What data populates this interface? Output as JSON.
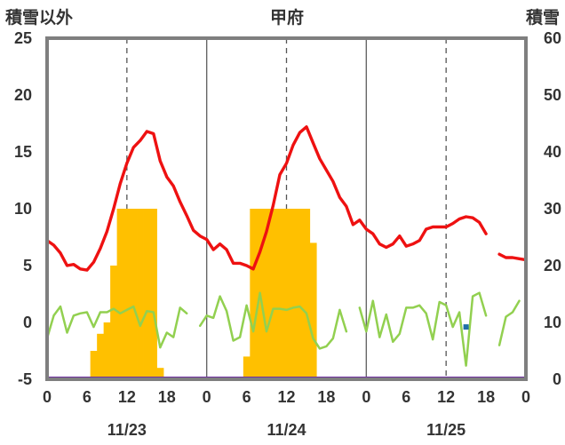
{
  "chart_data": {
    "type": "line",
    "title": "甲府",
    "left_axis_title": "積雪以外",
    "right_axis_title": "積雪",
    "left_ylim": [
      -5,
      25
    ],
    "left_yticks": [
      "25",
      "20",
      "15",
      "10",
      "5",
      "0",
      "-5"
    ],
    "right_ylim": [
      0,
      60
    ],
    "right_yticks": [
      "60",
      "50",
      "40",
      "30",
      "20",
      "10",
      "0"
    ],
    "xlim": [
      0,
      72
    ],
    "x_tick_labels": [
      "0",
      "6",
      "12",
      "18",
      "0",
      "6",
      "12",
      "18",
      "0",
      "6",
      "12",
      "18",
      "0"
    ],
    "date_labels": [
      "11/23",
      "11/24",
      "11/25"
    ],
    "grid": "dashed vertical at hours 12, 36, 60; solid day separators at 24, 48",
    "colors": {
      "temperature": "#ee1111",
      "wind": "#92d050",
      "snow_depth": "#ffc000",
      "baseline": "#7030a0",
      "marker": "#1f6fa8",
      "frame": "#7f7f7f"
    },
    "temperature": [
      [
        0,
        7.2
      ],
      [
        1,
        6.8
      ],
      [
        2,
        6.1
      ],
      [
        3,
        5.0
      ],
      [
        4,
        5.1
      ],
      [
        5,
        4.7
      ],
      [
        6,
        4.6
      ],
      [
        7,
        5.3
      ],
      [
        8,
        6.5
      ],
      [
        9,
        8.0
      ],
      [
        10,
        10.0
      ],
      [
        11,
        12.2
      ],
      [
        12,
        14.0
      ],
      [
        13,
        15.4
      ],
      [
        14,
        16.0
      ],
      [
        15,
        16.8
      ],
      [
        16,
        16.6
      ],
      [
        17,
        14.2
      ],
      [
        18,
        12.8
      ],
      [
        19,
        12.0
      ],
      [
        20,
        10.6
      ],
      [
        21,
        9.4
      ],
      [
        22,
        8.1
      ],
      [
        23,
        7.6
      ],
      [
        24,
        7.3
      ],
      [
        25,
        6.4
      ],
      [
        26,
        6.9
      ],
      [
        27,
        6.4
      ],
      [
        28,
        5.2
      ],
      [
        29,
        5.2
      ],
      [
        30,
        5.0
      ],
      [
        31,
        4.7
      ],
      [
        32,
        6.2
      ],
      [
        33,
        8.0
      ],
      [
        34,
        10.3
      ],
      [
        35,
        13.0
      ],
      [
        36,
        14.0
      ],
      [
        37,
        15.6
      ],
      [
        38,
        16.7
      ],
      [
        39,
        17.2
      ],
      [
        40,
        15.8
      ],
      [
        41,
        14.4
      ],
      [
        42,
        13.4
      ],
      [
        43,
        12.4
      ],
      [
        44,
        11.0
      ],
      [
        45,
        10.2
      ],
      [
        46,
        8.6
      ],
      [
        47,
        9.0
      ],
      [
        48,
        8.2
      ],
      [
        49,
        7.8
      ],
      [
        50,
        6.9
      ],
      [
        51,
        6.6
      ],
      [
        52,
        6.9
      ],
      [
        53,
        7.6
      ],
      [
        54,
        6.7
      ],
      [
        55,
        6.9
      ],
      [
        56,
        7.2
      ],
      [
        57,
        8.2
      ],
      [
        58,
        8.4
      ],
      [
        59,
        8.4
      ],
      [
        60,
        8.4
      ],
      [
        61,
        8.7
      ],
      [
        62,
        9.1
      ],
      [
        63,
        9.3
      ],
      [
        64,
        9.2
      ],
      [
        65,
        8.8
      ],
      [
        66,
        7.8
      ],
      [
        67,
        null
      ],
      [
        68,
        6.0
      ],
      [
        69,
        5.7
      ],
      [
        70,
        5.7
      ],
      [
        71,
        5.6
      ],
      [
        72,
        5.5
      ]
    ],
    "wind": [
      [
        0,
        -1.4
      ],
      [
        1,
        0.6
      ],
      [
        2,
        1.4
      ],
      [
        3,
        -0.9
      ],
      [
        4,
        0.6
      ],
      [
        5,
        0.8
      ],
      [
        6,
        0.9
      ],
      [
        7,
        -0.4
      ],
      [
        8,
        0.9
      ],
      [
        9,
        0.9
      ],
      [
        10,
        1.2
      ],
      [
        11,
        0.8
      ],
      [
        12,
        1.1
      ],
      [
        13,
        1.4
      ],
      [
        14,
        -0.3
      ],
      [
        15,
        1.0
      ],
      [
        16,
        0.9
      ],
      [
        17,
        -2.2
      ],
      [
        18,
        -0.9
      ],
      [
        19,
        -1.3
      ],
      [
        20,
        1.3
      ],
      [
        21,
        0.8
      ],
      [
        22,
        null
      ],
      [
        23,
        -0.3
      ],
      [
        24,
        0.6
      ],
      [
        25,
        0.4
      ],
      [
        26,
        2.3
      ],
      [
        27,
        1.0
      ],
      [
        28,
        -1.6
      ],
      [
        29,
        -1.3
      ],
      [
        30,
        1.5
      ],
      [
        31,
        -0.8
      ],
      [
        32,
        2.6
      ],
      [
        33,
        -0.8
      ],
      [
        34,
        1.2
      ],
      [
        35,
        1.2
      ],
      [
        36,
        1.1
      ],
      [
        37,
        1.3
      ],
      [
        38,
        1.4
      ],
      [
        39,
        0.8
      ],
      [
        40,
        -1.4
      ],
      [
        41,
        -2.3
      ],
      [
        42,
        -2.1
      ],
      [
        43,
        -1.4
      ],
      [
        44,
        1.1
      ],
      [
        45,
        -0.8
      ],
      [
        46,
        null
      ],
      [
        47,
        1.3
      ],
      [
        48,
        -0.8
      ],
      [
        49,
        1.9
      ],
      [
        50,
        -1.3
      ],
      [
        51,
        0.7
      ],
      [
        52,
        -1.7
      ],
      [
        53,
        -1.0
      ],
      [
        54,
        1.3
      ],
      [
        55,
        1.3
      ],
      [
        56,
        1.5
      ],
      [
        57,
        0.8
      ],
      [
        58,
        -1.5
      ],
      [
        59,
        1.8
      ],
      [
        60,
        1.5
      ],
      [
        61,
        -0.4
      ],
      [
        62,
        0.9
      ],
      [
        63,
        -3.8
      ],
      [
        64,
        2.3
      ],
      [
        65,
        2.6
      ],
      [
        66,
        0.6
      ],
      [
        67,
        null
      ],
      [
        68,
        -2.0
      ],
      [
        69,
        0.5
      ],
      [
        70,
        0.9
      ],
      [
        71,
        1.9
      ]
    ],
    "snow_depth_cm": [
      [
        6,
        0
      ],
      [
        7,
        5
      ],
      [
        8,
        8
      ],
      [
        9,
        10
      ],
      [
        10,
        20
      ],
      [
        11,
        30
      ],
      [
        12,
        30
      ],
      [
        13,
        30
      ],
      [
        14,
        30
      ],
      [
        15,
        30
      ],
      [
        16,
        30
      ],
      [
        17,
        2
      ],
      [
        29,
        0
      ],
      [
        30,
        4
      ],
      [
        31,
        30
      ],
      [
        32,
        30
      ],
      [
        33,
        30
      ],
      [
        34,
        30
      ],
      [
        35,
        30
      ],
      [
        36,
        30
      ],
      [
        37,
        30
      ],
      [
        38,
        30
      ],
      [
        39,
        30
      ],
      [
        40,
        24
      ],
      [
        41,
        0
      ]
    ],
    "marker_point": [
      63,
      -0.4
    ]
  }
}
